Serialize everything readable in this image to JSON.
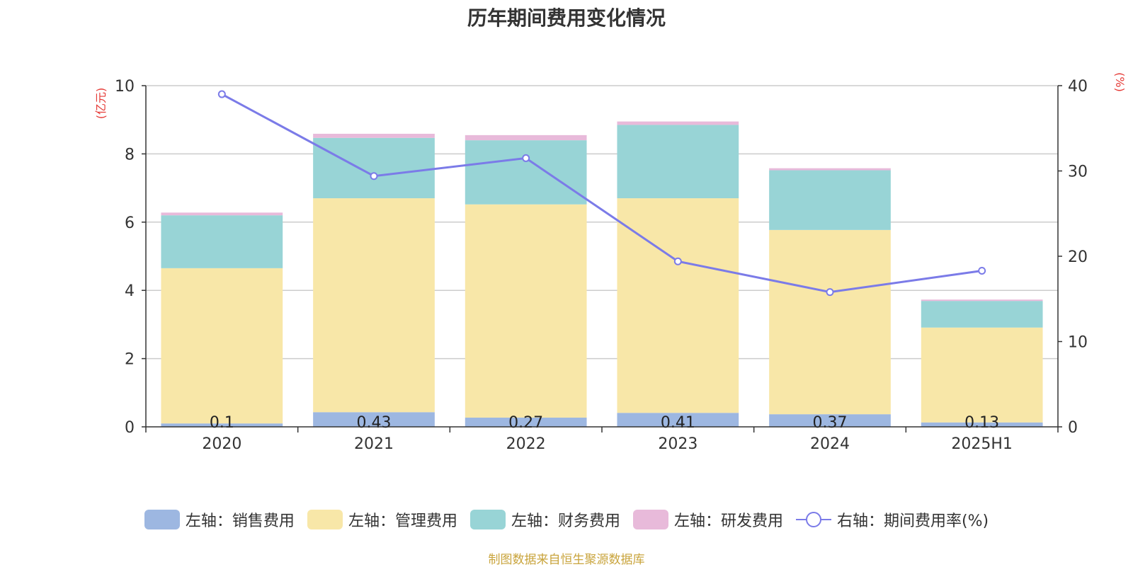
{
  "chart_data": {
    "type": "bar",
    "title": "历年期间费用变化情况",
    "categories": [
      "2020",
      "2021",
      "2022",
      "2023",
      "2024",
      "2025H1"
    ],
    "y_left_label": "(亿元)",
    "y_right_label": "(%)",
    "y_left_range": [
      0,
      10
    ],
    "y_left_ticks": [
      "0",
      "2",
      "4",
      "6",
      "8",
      "10"
    ],
    "y_right_range": [
      0,
      40
    ],
    "y_right_ticks": [
      "0",
      "10",
      "20",
      "30",
      "40"
    ],
    "grid": true,
    "legend_position": "bottom",
    "series": [
      {
        "name": "左轴：销售费用",
        "axis": "left",
        "color": "#9db7e1",
        "stack": "cost",
        "values": [
          0.1,
          0.43,
          0.27,
          0.41,
          0.37,
          0.13
        ],
        "labels": [
          "0.1",
          "0.43",
          "0.27",
          "0.41",
          "0.37",
          "0.13"
        ]
      },
      {
        "name": "左轴：管理费用",
        "axis": "left",
        "color": "#f8e7a8",
        "stack": "cost",
        "values": [
          4.55,
          6.27,
          6.25,
          6.29,
          5.4,
          2.78
        ]
      },
      {
        "name": "左轴：财务费用",
        "axis": "left",
        "color": "#98d4d6",
        "stack": "cost",
        "values": [
          1.55,
          1.77,
          1.88,
          2.15,
          1.75,
          0.78
        ]
      },
      {
        "name": "左轴：研发费用",
        "axis": "left",
        "color": "#e8bada",
        "stack": "cost",
        "values": [
          0.08,
          0.12,
          0.15,
          0.1,
          0.06,
          0.04
        ]
      },
      {
        "name": "右轴：期间费用率(%)",
        "axis": "right",
        "type": "line",
        "color": "#7b7be8",
        "values": [
          39.0,
          29.4,
          31.5,
          19.4,
          15.8,
          18.3
        ]
      }
    ]
  },
  "source_note": "制图数据来自恒生聚源数据库"
}
